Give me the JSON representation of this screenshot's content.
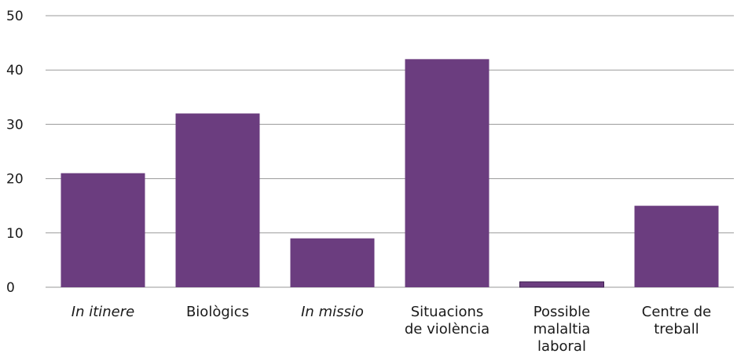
{
  "chart_data": {
    "type": "bar",
    "categories": [
      {
        "lines": [
          "In itinere"
        ],
        "italic": true
      },
      {
        "lines": [
          "Biològics"
        ],
        "italic": false
      },
      {
        "lines": [
          "In missio"
        ],
        "italic": true
      },
      {
        "lines": [
          "Situacions",
          "de violència"
        ],
        "italic": false
      },
      {
        "lines": [
          "Possible",
          "malaltia",
          "laboral"
        ],
        "italic": false
      },
      {
        "lines": [
          "Centre de",
          "treball"
        ],
        "italic": false
      }
    ],
    "values": [
      21,
      32,
      9,
      42,
      1,
      15
    ],
    "ylim": [
      0,
      50
    ],
    "yticks": [
      "0",
      "10",
      "20",
      "30",
      "40",
      "50"
    ],
    "grid": true,
    "bar_color": "#6b3d7f",
    "grid_color": "#9a9a9a"
  }
}
